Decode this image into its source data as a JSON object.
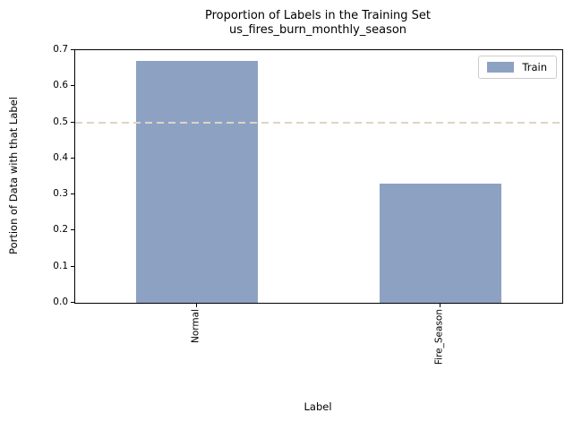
{
  "chart_data": {
    "type": "bar",
    "title_lines": [
      "Proportion of Labels in the Training Set",
      "us_fires_burn_monthly_season"
    ],
    "title": "Proportion of Labels in the Training Set\nus_fires_burn_monthly_season",
    "categories": [
      "Normal",
      "Fire_Season"
    ],
    "series": [
      {
        "name": "Train",
        "values": [
          0.67,
          0.33
        ]
      }
    ],
    "xlabel": "Label",
    "ylabel": "Portion of Data with that Label",
    "ylim": [
      0.0,
      0.7
    ],
    "yticks": [
      0.0,
      0.1,
      0.2,
      0.3,
      0.4,
      0.5,
      0.6,
      0.7
    ],
    "ytick_labels": [
      "0.0",
      "0.1",
      "0.2",
      "0.3",
      "0.4",
      "0.5",
      "0.6",
      "0.7"
    ],
    "reference_line": {
      "y": 0.5,
      "style": "dashed",
      "color": "#e0d4c3"
    },
    "bar_color": "#8da2c3",
    "legend": {
      "position": "upper right",
      "entries": [
        "Train"
      ]
    },
    "grid": false
  }
}
